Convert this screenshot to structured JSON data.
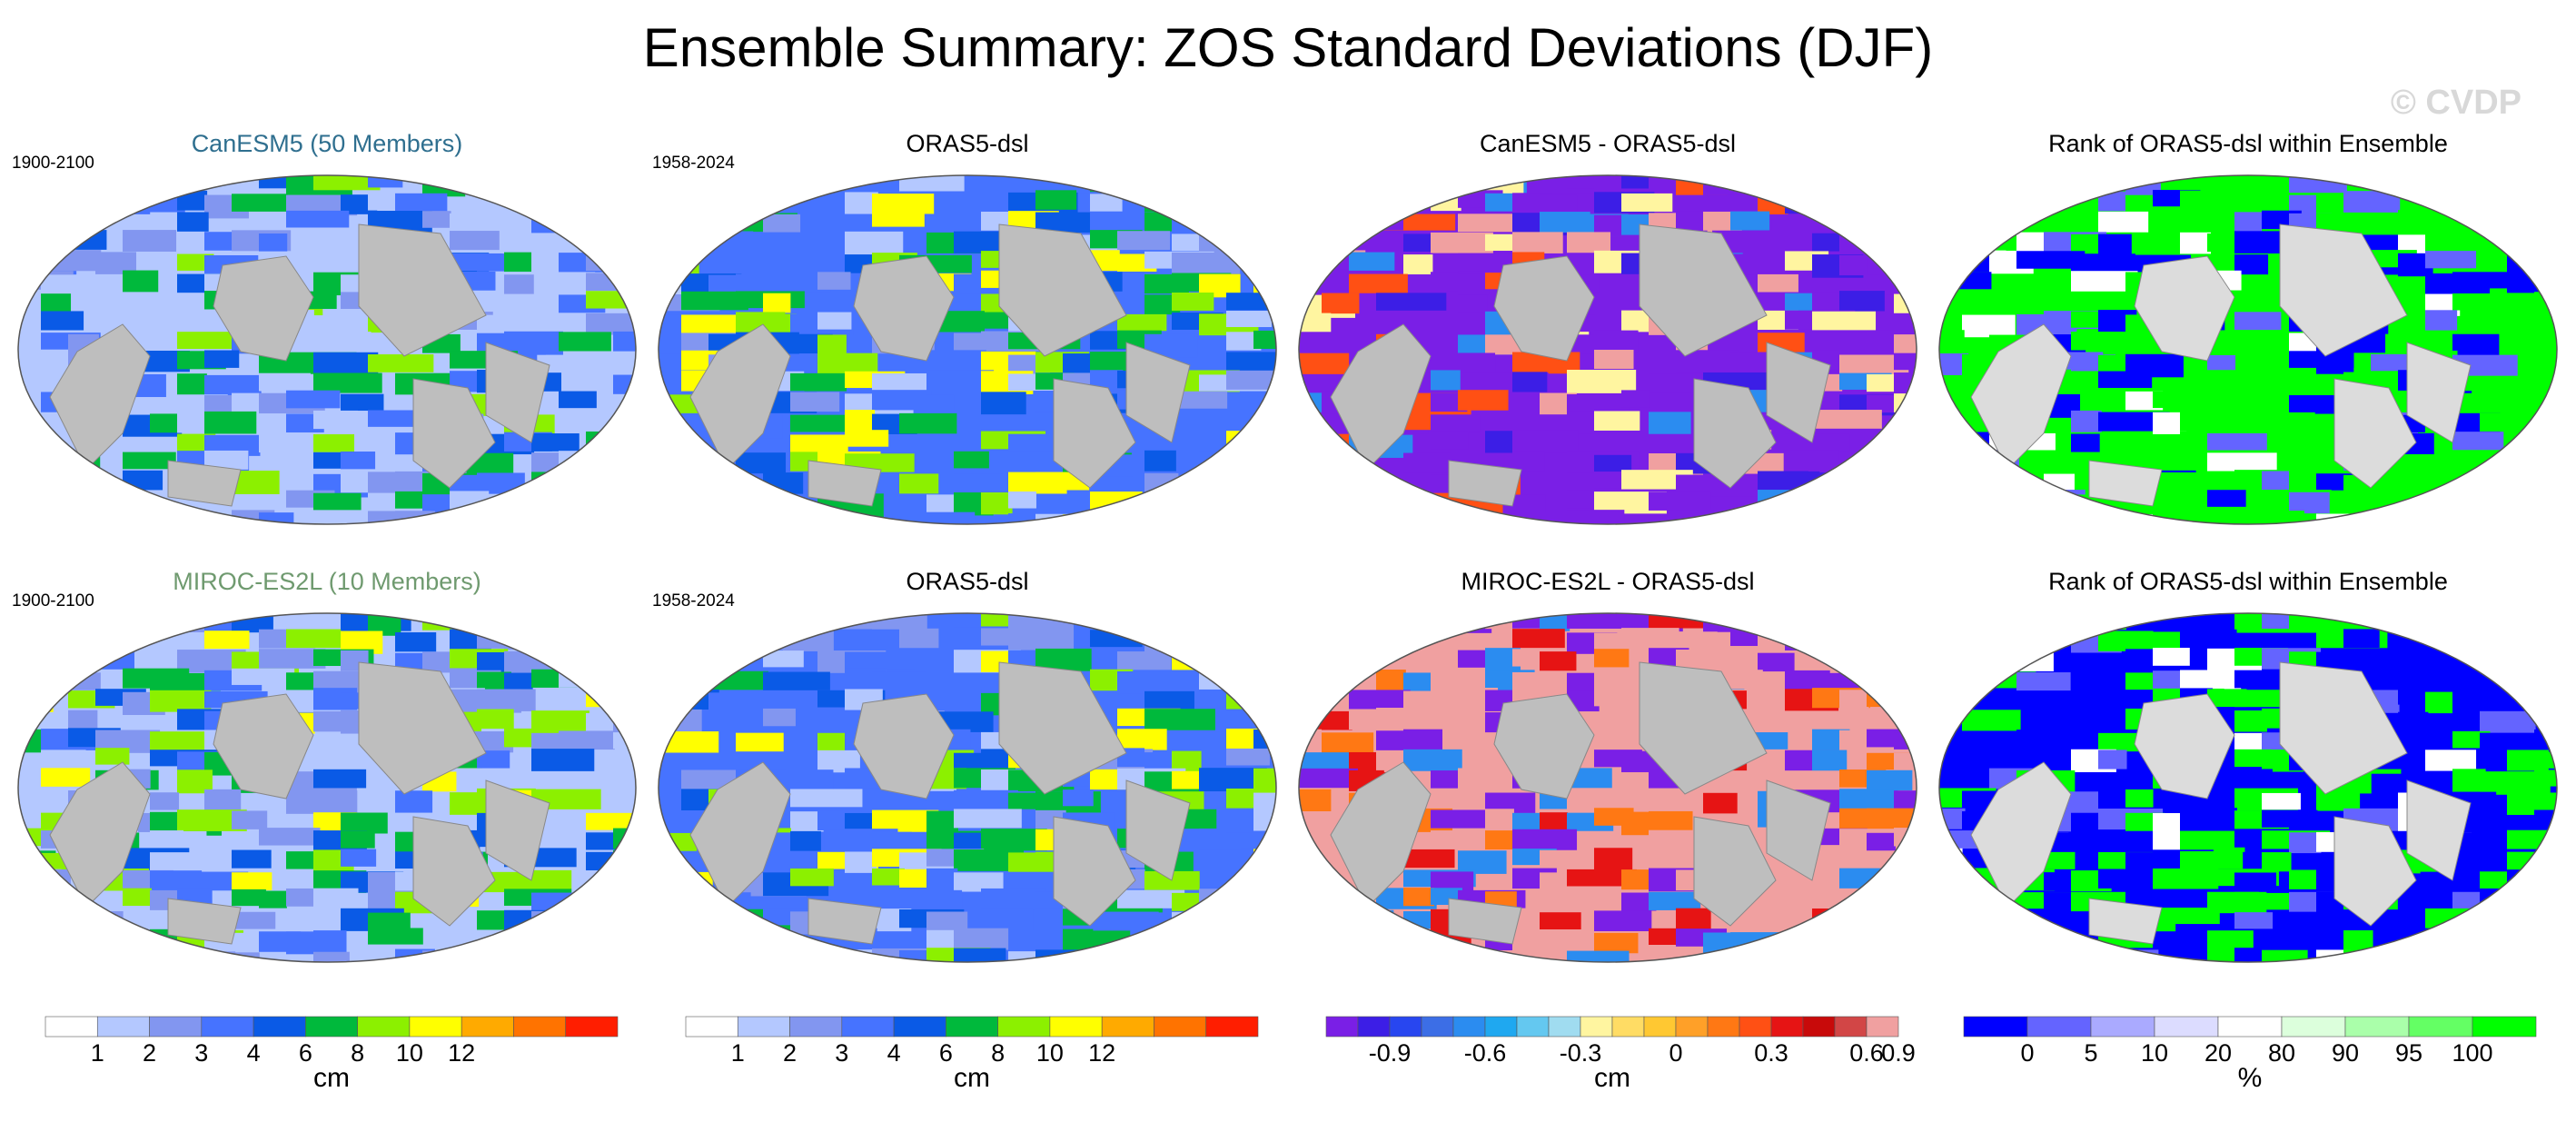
{
  "title": "Ensemble Summary: ZOS Standard Deviations (DJF)",
  "watermark": "© CVDP",
  "rows": [
    {
      "model": {
        "label": "CanESM5 (50 Members)",
        "period": "1900-2100",
        "color": "#2f6f8f"
      },
      "obs": {
        "label": "ORAS5-dsl",
        "period": "1958-2024"
      },
      "diff": {
        "label": "CanESM5 - ORAS5-dsl"
      },
      "rank": {
        "label": "Rank of ORAS5-dsl within Ensemble"
      }
    },
    {
      "model": {
        "label": "MIROC-ES2L (10 Members)",
        "period": "1900-2100",
        "color": "#6f9a6f"
      },
      "obs": {
        "label": "ORAS5-dsl",
        "period": "1958-2024"
      },
      "diff": {
        "label": "MIROC-ES2L - ORAS5-dsl"
      },
      "rank": {
        "label": "Rank of ORAS5-dsl within Ensemble"
      }
    }
  ],
  "colorbars": [
    {
      "unit": "cm",
      "colors": [
        "#ffffff",
        "#b4c8ff",
        "#8296f0",
        "#4673ff",
        "#0a5ae6",
        "#00b93c",
        "#8cf000",
        "#ffff00",
        "#ffaa00",
        "#ff7300",
        "#ff1e00"
      ],
      "ticks": [
        "1",
        "2",
        "3",
        "4",
        "6",
        "8",
        "10",
        "12"
      ]
    },
    {
      "unit": "cm",
      "colors": [
        "#ffffff",
        "#b4c8ff",
        "#8296f0",
        "#4673ff",
        "#0a5ae6",
        "#00b93c",
        "#8cf000",
        "#ffff00",
        "#ffaa00",
        "#ff7300",
        "#ff1e00"
      ],
      "ticks": [
        "1",
        "2",
        "3",
        "4",
        "6",
        "8",
        "10",
        "12"
      ]
    },
    {
      "unit": "cm",
      "colors": [
        "#7a1fe6",
        "#3c1ee6",
        "#2846f0",
        "#3c6ee6",
        "#2b8cf0",
        "#1fa8f0",
        "#64c8f0",
        "#a0dcf0",
        "#fff5a0",
        "#ffdc64",
        "#ffc832",
        "#ffa028",
        "#ff7814",
        "#ff5014",
        "#e61414",
        "#c80a0a",
        "#d24646",
        "#f0a0a0"
      ],
      "ticks": [
        "-0.9",
        "-0.6",
        "-0.3",
        "0",
        "0.3",
        "0.6",
        "0.9"
      ]
    },
    {
      "unit": "%",
      "colors": [
        "#0000ff",
        "#6464ff",
        "#aaaaff",
        "#dcdcff",
        "#ffffff",
        "#dcffdc",
        "#aaffaa",
        "#64ff64",
        "#00ff00"
      ],
      "ticks": [
        "0",
        "5",
        "10",
        "20",
        "80",
        "90",
        "95",
        "100"
      ]
    }
  ]
}
